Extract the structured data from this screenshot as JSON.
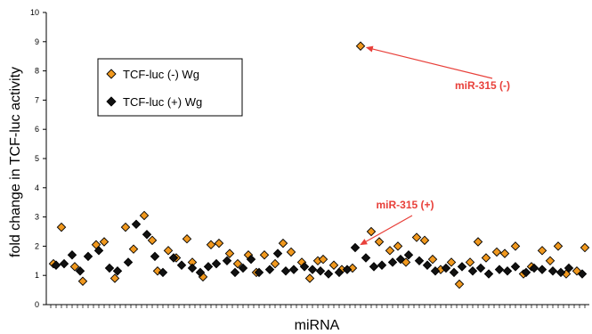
{
  "chart_data": {
    "type": "scatter",
    "title": "",
    "xlabel": "miRNA",
    "ylabel": "fold change in TCF-luc activity",
    "ylim": [
      0,
      10
    ],
    "yticks": [
      "0",
      "1",
      "2",
      "3",
      "4",
      "5",
      "6",
      "7",
      "8",
      "9",
      "10"
    ],
    "xlim": [
      0,
      200
    ],
    "grid": false,
    "legend_position": "top-left",
    "series": [
      {
        "name": "TCF-luc (-) Wg",
        "marker": "diamond",
        "color": "#f0981e",
        "x": [
          1,
          4,
          9,
          12,
          17,
          20,
          24,
          28,
          31,
          35,
          38,
          40,
          44,
          47,
          51,
          53,
          57,
          60,
          63,
          67,
          70,
          74,
          77,
          80,
          84,
          87,
          90,
          94,
          97,
          100,
          102,
          106,
          109,
          113,
          116,
          120,
          123,
          127,
          130,
          133,
          137,
          140,
          143,
          146,
          150,
          153,
          157,
          160,
          163,
          167,
          170,
          174,
          177,
          180,
          184,
          187,
          190,
          193,
          197,
          200
        ],
        "y": [
          1.4,
          2.65,
          1.3,
          0.8,
          2.05,
          2.15,
          0.9,
          2.65,
          1.9,
          3.05,
          2.2,
          1.15,
          1.85,
          1.6,
          2.25,
          1.45,
          0.95,
          2.05,
          2.1,
          1.75,
          1.4,
          1.7,
          1.1,
          1.7,
          1.4,
          2.1,
          1.8,
          1.45,
          0.9,
          1.5,
          1.55,
          1.35,
          1.2,
          1.25,
          8.85,
          2.5,
          2.15,
          1.85,
          2.0,
          1.45,
          2.3,
          2.2,
          1.55,
          1.2,
          1.45,
          0.7,
          1.45,
          2.15,
          1.6,
          1.8,
          1.75,
          2.0,
          1.05,
          1.3,
          1.85,
          1.5,
          2.0,
          1.05,
          1.15,
          1.95
        ],
        "label": "miR-315 (-)"
      },
      {
        "name": "TCF-luc (+) Wg",
        "marker": "diamond",
        "color": "#111111",
        "x": [
          2,
          5,
          8,
          11,
          14,
          18,
          22,
          25,
          29,
          32,
          36,
          39,
          42,
          46,
          49,
          53,
          56,
          59,
          62,
          66,
          69,
          72,
          75,
          78,
          82,
          85,
          88,
          91,
          95,
          98,
          101,
          104,
          108,
          111,
          114,
          118,
          121,
          124,
          128,
          131,
          134,
          138,
          141,
          144,
          148,
          151,
          154,
          158,
          161,
          164,
          168,
          171,
          174,
          178,
          181,
          184,
          188,
          191,
          194,
          199
        ],
        "y": [
          1.35,
          1.4,
          1.7,
          1.15,
          1.65,
          1.85,
          1.25,
          1.15,
          1.45,
          2.75,
          2.4,
          1.65,
          1.1,
          1.6,
          1.35,
          1.25,
          1.1,
          1.3,
          1.4,
          1.5,
          1.1,
          1.25,
          1.55,
          1.1,
          1.2,
          1.75,
          1.15,
          1.2,
          1.3,
          1.2,
          1.15,
          1.05,
          1.1,
          1.2,
          1.95,
          1.6,
          1.3,
          1.35,
          1.45,
          1.55,
          1.7,
          1.5,
          1.35,
          1.15,
          1.25,
          1.1,
          1.3,
          1.15,
          1.25,
          1.05,
          1.2,
          1.15,
          1.3,
          1.1,
          1.25,
          1.2,
          1.15,
          1.1,
          1.25,
          1.05
        ],
        "label": "miR-315 (+)"
      }
    ],
    "annotations": [
      {
        "text": "miR-315 (-)",
        "color": "#e8403a",
        "target_series": 0,
        "target_x": 116,
        "target_y": 8.85
      },
      {
        "text": "miR-315 (+)",
        "color": "#e8403a",
        "target_series": 1,
        "target_x": 114,
        "target_y": 1.95
      }
    ]
  }
}
